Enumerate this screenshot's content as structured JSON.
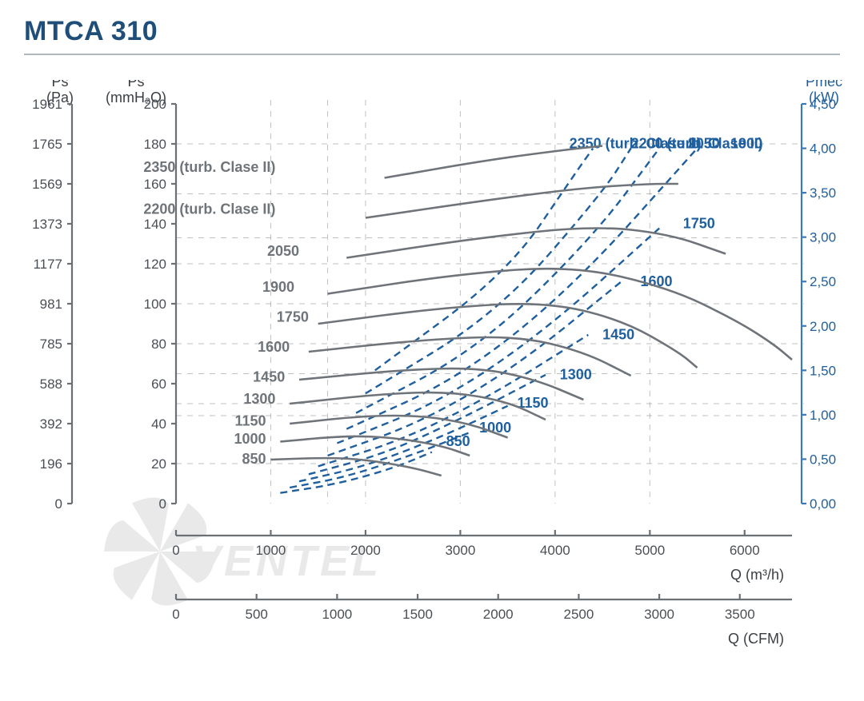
{
  "title": "MTCA 310",
  "axes": {
    "ps_pa": {
      "label_top": "Ps",
      "label_bottom": "(Pa)",
      "ticks": [
        0,
        196,
        392,
        588,
        785,
        981,
        1177,
        1373,
        1569,
        1765,
        1961
      ]
    },
    "ps_mmh2o": {
      "label_top": "Ps",
      "label_bottom": "(mmH₂O)",
      "ticks": [
        0,
        20,
        40,
        60,
        80,
        100,
        120,
        140,
        160,
        180,
        200
      ]
    },
    "pmec": {
      "label_top": "Pmec",
      "label_bottom": "(kW)",
      "ticks": [
        "0,00",
        "0,50",
        "1,00",
        "1,50",
        "2,00",
        "2,50",
        "3,00",
        "3,50",
        "4,00",
        "4,50"
      ]
    },
    "q_m3h": {
      "label": "Q (m³/h)",
      "ticks": [
        0,
        1000,
        2000,
        3000,
        4000,
        5000,
        6000
      ]
    },
    "q_cfm": {
      "label": "Q (CFM)",
      "ticks": [
        0,
        500,
        1000,
        1500,
        2000,
        2500,
        3000,
        3500
      ]
    }
  },
  "chart": {
    "type": "line",
    "x_domain_main": [
      0,
      6500
    ],
    "y_domain_mmh2o": [
      0,
      200
    ],
    "pmec_domain": [
      0,
      4.5
    ],
    "colors": {
      "ps_curve": "#6e7479",
      "pmec_curve": "#1f5f9e",
      "grid": "#777777",
      "axis_left": "#6b7075",
      "axis_right": "#3a7ab8",
      "title": "#1f4e79",
      "bg": "#ffffff"
    },
    "grid_y_mmh2o": [
      20,
      44,
      50,
      65,
      80,
      100,
      120,
      133,
      155,
      180
    ],
    "grid_x_m3h": [
      1000,
      1600,
      2000,
      3000,
      4000,
      5000
    ],
    "ps_curves": [
      {
        "label": "850",
        "label_pos": [
          950,
          22
        ],
        "pts": [
          [
            1000,
            22
          ],
          [
            1600,
            23
          ],
          [
            2000,
            22
          ],
          [
            2500,
            18
          ],
          [
            2800,
            14
          ]
        ]
      },
      {
        "label": "1000",
        "label_pos": [
          950,
          32
        ],
        "pts": [
          [
            1100,
            31
          ],
          [
            1800,
            34
          ],
          [
            2300,
            33
          ],
          [
            2800,
            29
          ],
          [
            3100,
            24
          ]
        ]
      },
      {
        "label": "1150",
        "label_pos": [
          950,
          41
        ],
        "pts": [
          [
            1200,
            40
          ],
          [
            2000,
            44
          ],
          [
            2600,
            44
          ],
          [
            3100,
            40
          ],
          [
            3500,
            33
          ]
        ]
      },
      {
        "label": "1300",
        "label_pos": [
          1050,
          52
        ],
        "pts": [
          [
            1200,
            50
          ],
          [
            2200,
            55
          ],
          [
            2900,
            56
          ],
          [
            3500,
            51
          ],
          [
            3900,
            42
          ]
        ]
      },
      {
        "label": "1450",
        "label_pos": [
          1150,
          63
        ],
        "pts": [
          [
            1300,
            62
          ],
          [
            2400,
            67
          ],
          [
            3200,
            68
          ],
          [
            3800,
            62
          ],
          [
            4300,
            52
          ]
        ]
      },
      {
        "label": "1600",
        "label_pos": [
          1200,
          78
        ],
        "pts": [
          [
            1400,
            76
          ],
          [
            2600,
            82
          ],
          [
            3600,
            84
          ],
          [
            4300,
            76
          ],
          [
            4800,
            64
          ]
        ]
      },
      {
        "label": "1750",
        "label_pos": [
          1400,
          93
        ],
        "pts": [
          [
            1500,
            90
          ],
          [
            2800,
            98
          ],
          [
            3900,
            101
          ],
          [
            4700,
            92
          ],
          [
            5300,
            76
          ],
          [
            5500,
            68
          ]
        ]
      },
      {
        "label": "1900",
        "label_pos": [
          1250,
          108
        ],
        "pts": [
          [
            1600,
            105
          ],
          [
            3000,
            115
          ],
          [
            4200,
            119
          ],
          [
            5200,
            108
          ],
          [
            5900,
            92
          ],
          [
            6300,
            80
          ],
          [
            6500,
            72
          ]
        ]
      },
      {
        "label": "2050",
        "label_pos": [
          1300,
          126
        ],
        "pts": [
          [
            1800,
            123
          ],
          [
            3200,
            133
          ],
          [
            4400,
            139
          ],
          [
            5200,
            135
          ],
          [
            5800,
            125
          ]
        ]
      },
      {
        "label": "2200 (turb. Clase II)",
        "label_pos": [
          1050,
          147
        ],
        "pts": [
          [
            2000,
            143
          ],
          [
            3300,
            152
          ],
          [
            4300,
            158
          ],
          [
            5000,
            160
          ],
          [
            5300,
            160
          ]
        ]
      },
      {
        "label": "2350 (turb. Clase II)",
        "label_pos": [
          1050,
          168
        ],
        "pts": [
          [
            2200,
            163
          ],
          [
            3300,
            172
          ],
          [
            4100,
            177
          ],
          [
            4500,
            179
          ]
        ]
      }
    ],
    "pmec_curves": [
      {
        "label": "850",
        "label_pos": [
          2850,
          0.65
        ],
        "pts": [
          [
            1100,
            0.12
          ],
          [
            1700,
            0.22
          ],
          [
            2300,
            0.4
          ],
          [
            2700,
            0.58
          ]
        ]
      },
      {
        "label": "1000",
        "label_pos": [
          3200,
          0.8
        ],
        "pts": [
          [
            1200,
            0.18
          ],
          [
            1800,
            0.3
          ],
          [
            2500,
            0.55
          ],
          [
            3100,
            0.8
          ]
        ]
      },
      {
        "label": "1150",
        "label_pos": [
          3600,
          1.08
        ],
        "pts": [
          [
            1300,
            0.25
          ],
          [
            2000,
            0.42
          ],
          [
            2800,
            0.75
          ],
          [
            3500,
            1.1
          ]
        ]
      },
      {
        "label": "1300",
        "label_pos": [
          4050,
          1.4
        ],
        "pts": [
          [
            1400,
            0.33
          ],
          [
            2200,
            0.56
          ],
          [
            3000,
            0.95
          ],
          [
            3900,
            1.45
          ]
        ]
      },
      {
        "label": "1450",
        "label_pos": [
          4500,
          1.85
        ],
        "pts": [
          [
            1500,
            0.42
          ],
          [
            2400,
            0.72
          ],
          [
            3300,
            1.2
          ],
          [
            4350,
            1.9
          ]
        ]
      },
      {
        "label": "1600",
        "label_pos": [
          4900,
          2.45
        ],
        "pts": [
          [
            1600,
            0.54
          ],
          [
            2600,
            0.92
          ],
          [
            3600,
            1.55
          ],
          [
            4700,
            2.5
          ]
        ]
      },
      {
        "label": "1750",
        "label_pos": [
          5350,
          3.1
        ],
        "pts": [
          [
            1700,
            0.68
          ],
          [
            2800,
            1.15
          ],
          [
            3900,
            1.95
          ],
          [
            5100,
            3.1
          ]
        ]
      },
      {
        "label": "1900",
        "label_pos": [
          5850,
          4.0
        ],
        "pts": [
          [
            1800,
            0.84
          ],
          [
            3000,
            1.42
          ],
          [
            4200,
            2.45
          ],
          [
            5500,
            4.0
          ]
        ]
      },
      {
        "label": "2050",
        "label_pos": [
          5400,
          4.0
        ],
        "pts": [
          [
            1900,
            1.02
          ],
          [
            3200,
            1.75
          ],
          [
            4400,
            3.0
          ],
          [
            5100,
            4.0
          ]
        ]
      },
      {
        "label": "2200 (turb. Clase II)",
        "label_pos": [
          4800,
          4.0
        ],
        "pts": [
          [
            2000,
            1.24
          ],
          [
            3400,
            2.15
          ],
          [
            4500,
            3.5
          ],
          [
            4800,
            4.0
          ]
        ]
      },
      {
        "label": "2350 (turb. Clase II)",
        "label_pos": [
          4150,
          4.0
        ],
        "pts": [
          [
            2100,
            1.5
          ],
          [
            3500,
            2.6
          ],
          [
            4200,
            3.7
          ],
          [
            4400,
            4.0
          ]
        ]
      }
    ]
  },
  "watermark": "VENTEL"
}
